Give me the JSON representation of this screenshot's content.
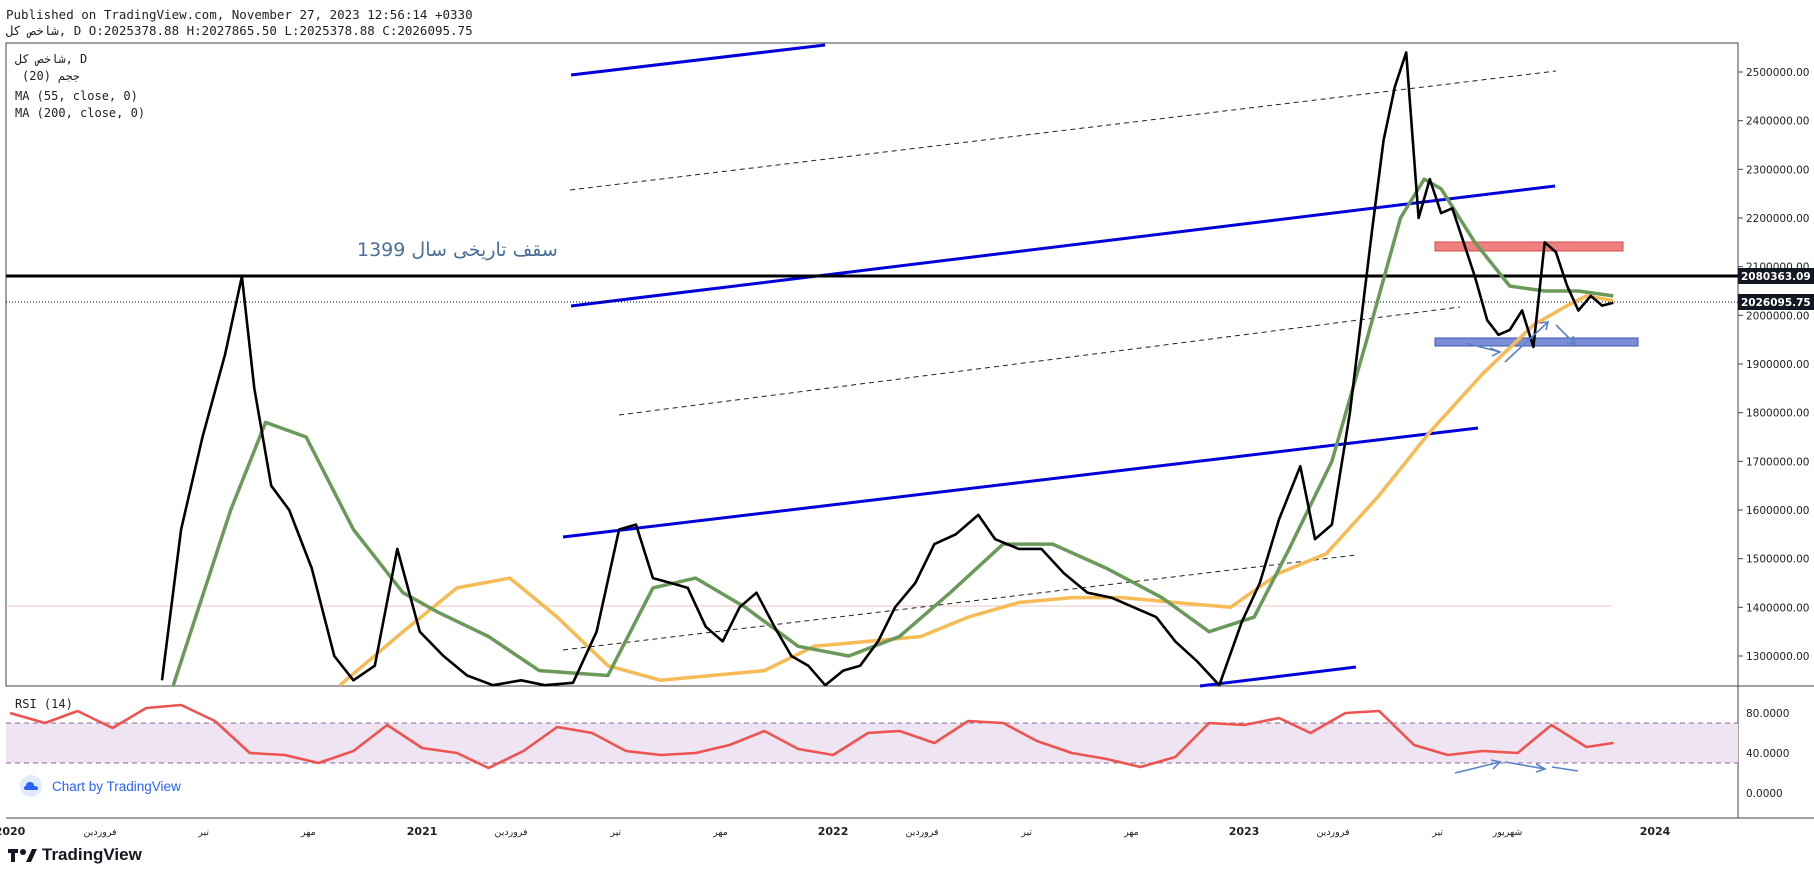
{
  "header": {
    "line1": "Published on TradingView.com, November 27, 2023 12:56:14 +0330",
    "line2": "شاخص کل, D O:2025378.88 H:2027865.50 L:2025378.88 C:2026095.75"
  },
  "legend": {
    "symbol": "شاخص کل, D",
    "line2": "ججم (20)",
    "ma55": "MA (55, close, 0)",
    "ma200": "MA (200, close, 0)"
  },
  "rsi_label": "RSI (14)",
  "annotation": "سقف تاریخی سال 1399",
  "footer": {
    "chart_by": "Chart by TradingView",
    "brand": "TradingView"
  },
  "colors": {
    "price": "#000000",
    "ma55": "#6a9a5a",
    "ma200": "#f7bb55",
    "channel": "#0000dd",
    "rsi": "#ef5350",
    "rsi_band": "#efe4f1",
    "resist_zone": "#f08080",
    "support_zone": "#7b8fd6",
    "arrows": "#5b82c8"
  },
  "chart_data": {
    "type": "line",
    "price_axis": {
      "ticks": [
        "2500000.00",
        "2400000.00",
        "2300000.00",
        "2200000.00",
        "2100000.00",
        "2000000.00",
        "1900000.00",
        "1800000.00",
        "1700000.00",
        "1600000.00",
        "1500000.00",
        "1400000.00",
        "1300000.00"
      ],
      "range": [
        1240000,
        2550000
      ]
    },
    "price_labels": {
      "horizontal_level": "2080363.09",
      "last_price": "2026095.75"
    },
    "rsi_axis": {
      "ticks": [
        "80.0000",
        "40.0000",
        "0.0000"
      ],
      "band": [
        30,
        70
      ]
    },
    "time_axis": {
      "labels": [
        "2020",
        "فروردین",
        "تیر",
        "مهر",
        "2021",
        "فروردین",
        "تیر",
        "مهر",
        "2022",
        "فروردین",
        "تیر",
        "مهر",
        "2023",
        "فروردین",
        "تیر",
        "شهریور",
        "2024"
      ],
      "x": [
        "2020-01-01",
        "2020-03-21",
        "2020-06-21",
        "2020-09-22",
        "2021-01-01",
        "2021-03-21",
        "2021-06-22",
        "2021-09-23",
        "2022-01-01",
        "2022-03-21",
        "2022-06-22",
        "2022-09-23",
        "2023-01-01",
        "2023-03-21",
        "2023-06-22",
        "2023-08-23",
        "2024-01-01"
      ]
    },
    "series": [
      {
        "name": "شاخص کل",
        "x": [
          "2020-05-15",
          "2020-06-01",
          "2020-06-20",
          "2020-07-10",
          "2020-07-25",
          "2020-08-05",
          "2020-08-20",
          "2020-09-05",
          "2020-09-25",
          "2020-10-15",
          "2020-11-01",
          "2020-11-20",
          "2020-12-10",
          "2020-12-30",
          "2021-01-20",
          "2021-02-10",
          "2021-03-05",
          "2021-03-30",
          "2021-04-20",
          "2021-05-15",
          "2021-06-05",
          "2021-06-25",
          "2021-07-10",
          "2021-07-25",
          "2021-08-10",
          "2021-08-25",
          "2021-09-10",
          "2021-09-25",
          "2021-10-10",
          "2021-10-25",
          "2021-11-10",
          "2021-11-25",
          "2021-12-10",
          "2021-12-25",
          "2022-01-10",
          "2022-01-25",
          "2022-02-10",
          "2022-02-25",
          "2022-03-15",
          "2022-04-01",
          "2022-04-20",
          "2022-05-10",
          "2022-05-25",
          "2022-06-15",
          "2022-07-05",
          "2022-07-25",
          "2022-08-15",
          "2022-09-05",
          "2022-09-25",
          "2022-10-15",
          "2022-11-01",
          "2022-11-20",
          "2022-12-10",
          "2022-12-30",
          "2023-01-15",
          "2023-02-01",
          "2023-02-20",
          "2023-03-05",
          "2023-03-20",
          "2023-04-05",
          "2023-04-25",
          "2023-05-05",
          "2023-05-15",
          "2023-05-25",
          "2023-06-05",
          "2023-06-15",
          "2023-06-25",
          "2023-07-05",
          "2023-07-15",
          "2023-07-25",
          "2023-08-05",
          "2023-08-15",
          "2023-08-25",
          "2023-09-05",
          "2023-09-15",
          "2023-09-25",
          "2023-10-05",
          "2023-10-15",
          "2023-10-25",
          "2023-11-05",
          "2023-11-15",
          "2023-11-25"
        ],
        "values": [
          1250000,
          1560000,
          1750000,
          1920000,
          2080000,
          1850000,
          1650000,
          1600000,
          1480000,
          1300000,
          1250000,
          1280000,
          1520000,
          1350000,
          1300000,
          1260000,
          1240000,
          1250000,
          1240000,
          1245000,
          1350000,
          1560000,
          1570000,
          1460000,
          1450000,
          1440000,
          1360000,
          1330000,
          1400000,
          1430000,
          1360000,
          1300000,
          1280000,
          1240000,
          1270000,
          1280000,
          1330000,
          1400000,
          1450000,
          1530000,
          1550000,
          1590000,
          1540000,
          1520000,
          1520000,
          1470000,
          1430000,
          1420000,
          1400000,
          1380000,
          1330000,
          1290000,
          1240000,
          1370000,
          1450000,
          1580000,
          1690000,
          1540000,
          1570000,
          1800000,
          2180000,
          2360000,
          2470000,
          2540000,
          2200000,
          2280000,
          2210000,
          2220000,
          2150000,
          2080000,
          1990000,
          1960000,
          1970000,
          2010000,
          1935000,
          2150000,
          2130000,
          2060000,
          2010000,
          2040000,
          2020000,
          2026000
        ]
      },
      {
        "name": "MA (55, close, 0)",
        "x": [
          "2020-05-25",
          "2020-07-15",
          "2020-08-15",
          "2020-09-20",
          "2020-11-01",
          "2020-12-15",
          "2021-01-15",
          "2021-03-01",
          "2021-04-15",
          "2021-06-15",
          "2021-07-25",
          "2021-09-01",
          "2021-10-15",
          "2021-12-01",
          "2022-01-15",
          "2022-03-01",
          "2022-04-15",
          "2022-06-01",
          "2022-07-15",
          "2022-09-01",
          "2022-10-20",
          "2022-12-01",
          "2023-01-10",
          "2023-02-10",
          "2023-03-20",
          "2023-04-20",
          "2023-05-20",
          "2023-06-10",
          "2023-06-25",
          "2023-07-25",
          "2023-08-25",
          "2023-09-25",
          "2023-10-25",
          "2023-11-25"
        ],
        "values": [
          1240000,
          1600000,
          1780000,
          1750000,
          1560000,
          1430000,
          1390000,
          1340000,
          1270000,
          1260000,
          1440000,
          1460000,
          1400000,
          1320000,
          1300000,
          1340000,
          1430000,
          1530000,
          1530000,
          1480000,
          1420000,
          1350000,
          1380000,
          1520000,
          1700000,
          1950000,
          2200000,
          2280000,
          2260000,
          2150000,
          2060000,
          2050000,
          2050000,
          2040000
        ]
      },
      {
        "name": "MA (200, close, 0)",
        "x": [
          "2020-10-20",
          "2020-12-15",
          "2021-02-01",
          "2021-03-20",
          "2021-05-01",
          "2021-06-15",
          "2021-08-01",
          "2021-09-15",
          "2021-11-01",
          "2021-12-15",
          "2022-02-01",
          "2022-03-20",
          "2022-05-01",
          "2022-06-15",
          "2022-08-01",
          "2022-09-15",
          "2022-11-01",
          "2022-12-20",
          "2023-02-01",
          "2023-03-15",
          "2023-05-01",
          "2023-06-15",
          "2023-08-01",
          "2023-09-15",
          "2023-10-15",
          "2023-11-01",
          "2023-11-25"
        ],
        "values": [
          1240000,
          1350000,
          1440000,
          1460000,
          1380000,
          1280000,
          1250000,
          1260000,
          1270000,
          1320000,
          1330000,
          1340000,
          1380000,
          1410000,
          1420000,
          1420000,
          1410000,
          1400000,
          1470000,
          1510000,
          1630000,
          1760000,
          1880000,
          1980000,
          2020000,
          2040000,
          2030000
        ]
      }
    ],
    "rsi": {
      "name": "RSI (14)",
      "x": [
        "2020-01-01",
        "2020-02-01",
        "2020-03-01",
        "2020-04-01",
        "2020-05-01",
        "2020-06-01",
        "2020-07-01",
        "2020-08-01",
        "2020-09-01",
        "2020-10-01",
        "2020-11-01",
        "2020-12-01",
        "2021-01-01",
        "2021-02-01",
        "2021-03-01",
        "2021-04-01",
        "2021-05-01",
        "2021-06-01",
        "2021-07-01",
        "2021-08-01",
        "2021-09-01",
        "2021-10-01",
        "2021-11-01",
        "2021-12-01",
        "2022-01-01",
        "2022-02-01",
        "2022-03-01",
        "2022-04-01",
        "2022-05-01",
        "2022-06-01",
        "2022-07-01",
        "2022-08-01",
        "2022-09-01",
        "2022-10-01",
        "2022-11-01",
        "2022-12-01",
        "2023-01-01",
        "2023-02-01",
        "2023-03-01",
        "2023-04-01",
        "2023-05-01",
        "2023-06-01",
        "2023-07-01",
        "2023-08-01",
        "2023-09-01",
        "2023-10-01",
        "2023-11-01",
        "2023-11-25"
      ],
      "values": [
        80,
        70,
        82,
        65,
        85,
        88,
        72,
        40,
        38,
        30,
        42,
        68,
        45,
        40,
        25,
        42,
        66,
        60,
        42,
        38,
        40,
        48,
        62,
        44,
        38,
        60,
        62,
        50,
        72,
        70,
        52,
        40,
        34,
        26,
        36,
        70,
        68,
        75,
        60,
        80,
        82,
        48,
        38,
        42,
        40,
        68,
        46,
        50
      ]
    },
    "trendlines": "parallel ascending channel lines (blue solid, black dashed)",
    "zones": [
      "resistance",
      "support"
    ]
  }
}
